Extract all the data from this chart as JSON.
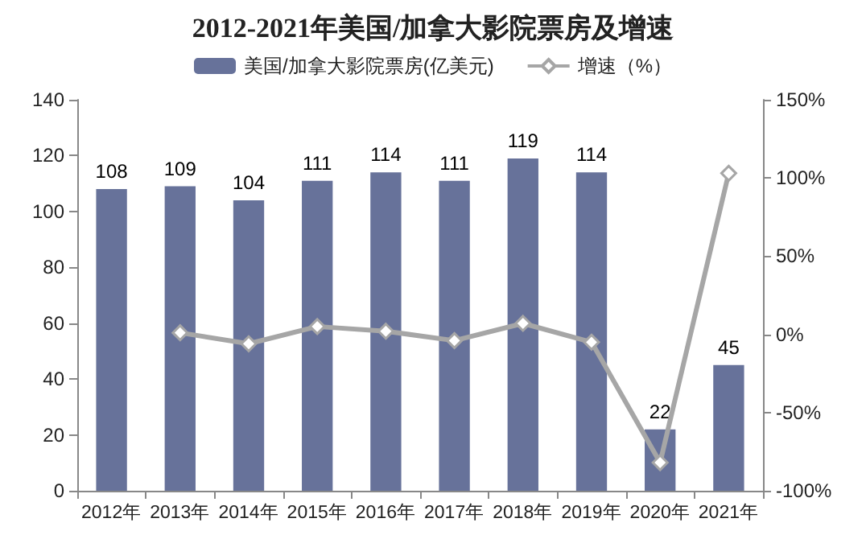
{
  "chart_data": {
    "type": "bar",
    "title": "2012-2021年美国/加拿大影院票房及增速",
    "categories": [
      "2012年",
      "2013年",
      "2014年",
      "2015年",
      "2016年",
      "2017年",
      "2018年",
      "2019年",
      "2020年",
      "2021年"
    ],
    "series": [
      {
        "name": "美国/加拿大影院票房(亿美元)",
        "color": "#67729a",
        "values": [
          108,
          109,
          104,
          111,
          114,
          111,
          119,
          114,
          22,
          45
        ],
        "data_labels": true
      },
      {
        "name": "增速（%）",
        "type": "line",
        "axis": "y2",
        "color": "#a6a6a6",
        "marker": "diamond",
        "values": [
          null,
          1,
          -6,
          5,
          2,
          -4,
          7,
          -5,
          -82,
          103
        ]
      }
    ],
    "ylim": [
      0,
      140
    ],
    "yticks": [
      0,
      20,
      40,
      60,
      80,
      100,
      120,
      140
    ],
    "y2lim": [
      -100,
      150
    ],
    "y2ticks": [
      {
        "value": -100,
        "label": "-100%"
      },
      {
        "value": -50,
        "label": "-50%"
      },
      {
        "value": 0,
        "label": "0%"
      },
      {
        "value": 50,
        "label": "50%"
      },
      {
        "value": 100,
        "label": "100%"
      },
      {
        "value": 150,
        "label": "150%"
      }
    ],
    "legend": "top",
    "grid": false
  }
}
